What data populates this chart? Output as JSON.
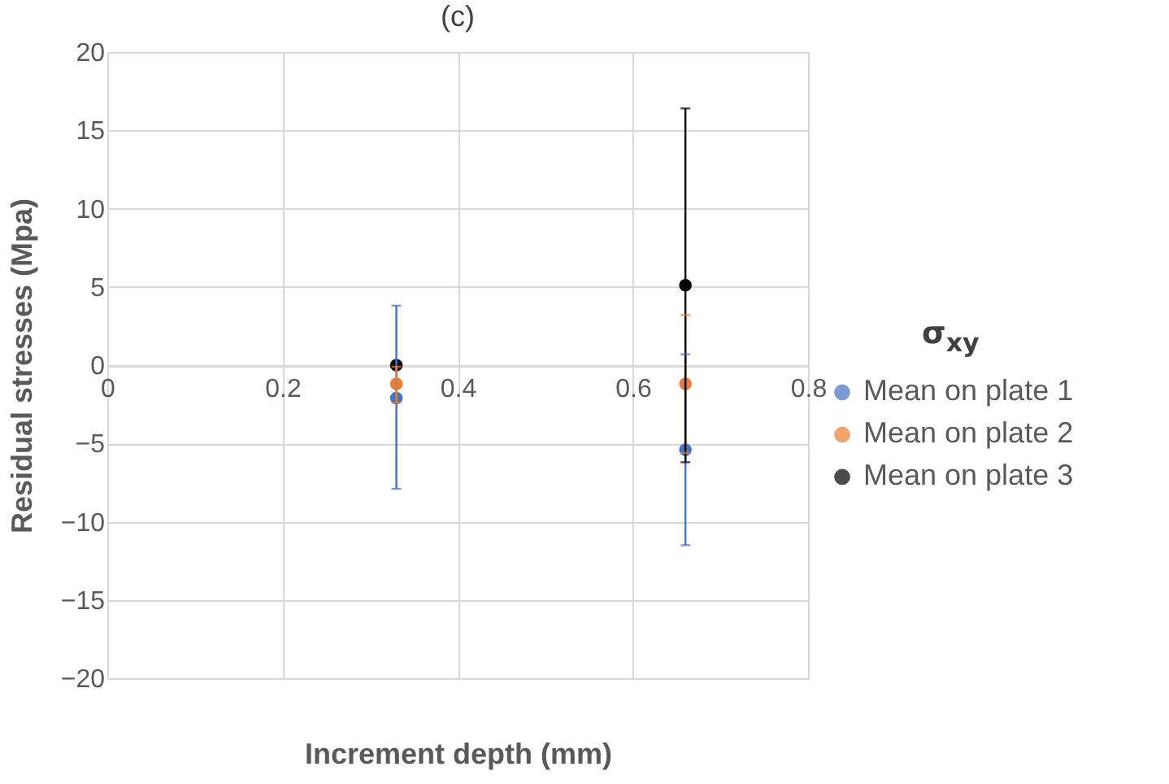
{
  "chart_data": {
    "type": "scatter",
    "title": "(c)",
    "xlabel": "Increment depth (mm)",
    "ylabel": "Residual stresses (Mpa)",
    "legend_title": "σ$_{xy}$",
    "x": [
      0.33,
      0.66
    ],
    "series": [
      {
        "name": "Mean on plate 1",
        "color": "#4472c4",
        "values": [
          -2.1,
          -5.4
        ],
        "errors": [
          [
            -7.9,
            3.8
          ],
          [
            -11.5,
            0.7
          ]
        ]
      },
      {
        "name": "Mean on plate 2",
        "color": "#ed7d31",
        "values": [
          -1.2,
          -1.2
        ],
        "errors": [
          [
            -2.4,
            -0.1
          ],
          [
            -5.6,
            3.2
          ]
        ]
      },
      {
        "name": "Mean on plate 3",
        "color": "#000000",
        "values": [
          0.0,
          5.1
        ],
        "errors": [
          null,
          [
            -6.2,
            16.4
          ]
        ]
      }
    ],
    "xlim": [
      0,
      0.8
    ],
    "xticks": [
      0,
      0.2,
      0.4,
      0.6,
      0.8
    ],
    "ylim": [
      -20,
      20
    ],
    "yticks": [
      -20,
      -15,
      -10,
      -5,
      0,
      5,
      10,
      15,
      20
    ],
    "grid": true,
    "legend": "right",
    "marker": "circle"
  }
}
